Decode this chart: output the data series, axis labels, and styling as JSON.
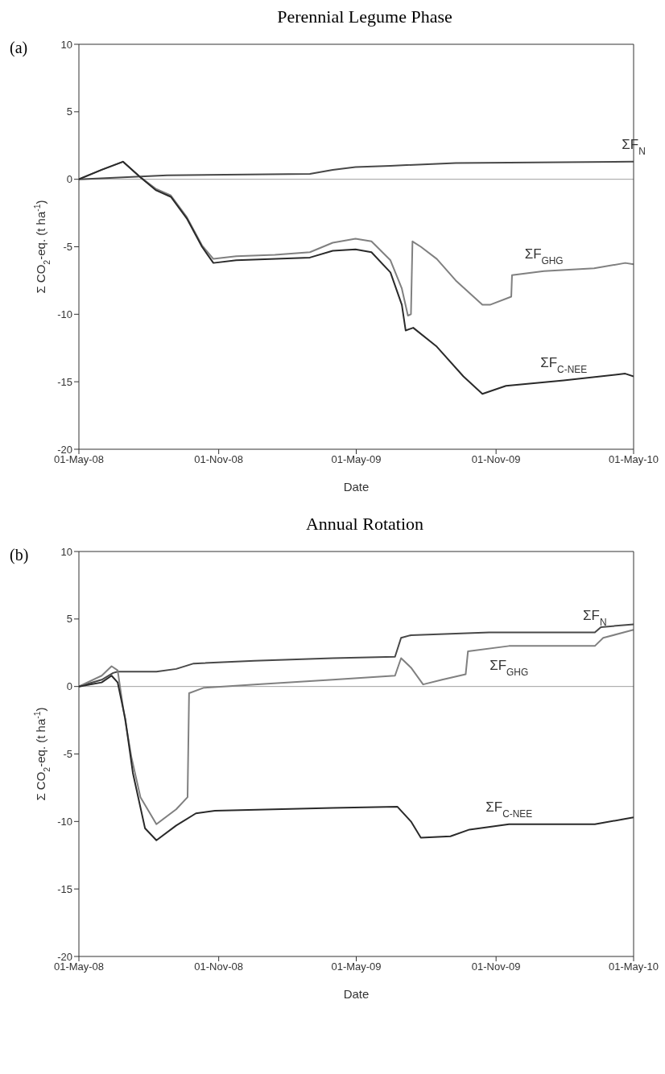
{
  "chart_data": [
    {
      "type": "line",
      "title": "Perennial Legume Phase",
      "annotations": [
        "(a)"
      ],
      "xlabel": "Date",
      "ylabel": "Σ CO$_{2}$-eq. (t ha$^{-1}$)",
      "xlim": [
        "2008-05-01",
        "2010-05-01"
      ],
      "xticks": [
        {
          "value": "2008-05-01",
          "label": "01-May-08"
        },
        {
          "value": "2008-11-01",
          "label": "01-Nov-08"
        },
        {
          "value": "2009-05-01",
          "label": "01-May-09"
        },
        {
          "value": "2009-11-01",
          "label": "01-Nov-09"
        },
        {
          "value": "2010-05-01",
          "label": "01-May-10"
        }
      ],
      "ylim": [
        -20,
        10
      ],
      "yticks": [
        -20,
        -15,
        -10,
        -5,
        0,
        5,
        10
      ],
      "ref_lines": [
        {
          "axis": "y",
          "value": 0,
          "color": "#a0a0a0"
        }
      ],
      "series": [
        {
          "name": "ΣF$_{N}$",
          "color": "#484848",
          "x": [
            "2008-05-01",
            "2008-08-25",
            "2009-03-01",
            "2009-03-31",
            "2009-04-30",
            "2009-06-15",
            "2009-09-09",
            "2010-05-01"
          ],
          "values": [
            0,
            0.3,
            0.4,
            0.7,
            0.9,
            1.0,
            1.2,
            1.3
          ]
        },
        {
          "name": "ΣF$_{GHG}$",
          "color": "#808080",
          "x": [
            "2008-05-01",
            "2008-05-31",
            "2008-06-28",
            "2008-07-21",
            "2008-08-10",
            "2008-08-30",
            "2008-09-20",
            "2008-10-10",
            "2008-10-25",
            "2008-11-24",
            "2009-01-14",
            "2009-03-01",
            "2009-03-31",
            "2009-04-30",
            "2009-05-21",
            "2009-06-15",
            "2009-06-30",
            "2009-07-08",
            "2009-07-12",
            "2009-07-14",
            "2009-07-25",
            "2009-08-15",
            "2009-09-09",
            "2009-10-14",
            "2009-10-24",
            "2009-11-21",
            "2009-11-22",
            "2010-01-03",
            "2010-03-10",
            "2010-04-20",
            "2010-05-01"
          ],
          "values": [
            0,
            0.7,
            1.3,
            0.15,
            -0.7,
            -1.2,
            -2.8,
            -4.9,
            -5.9,
            -5.7,
            -5.6,
            -5.4,
            -4.7,
            -4.4,
            -4.6,
            -6.0,
            -8.1,
            -10.1,
            -10.0,
            -4.6,
            -5.0,
            -5.9,
            -7.5,
            -9.3,
            -9.3,
            -8.7,
            -7.1,
            -6.8,
            -6.6,
            -6.2,
            -6.3
          ]
        },
        {
          "name": "ΣF$_{C-NEE}$",
          "color": "#2a2a2a",
          "x": [
            "2008-05-01",
            "2008-05-31",
            "2008-06-28",
            "2008-07-21",
            "2008-08-10",
            "2008-08-30",
            "2008-09-20",
            "2008-10-10",
            "2008-10-25",
            "2008-11-24",
            "2009-03-01",
            "2009-03-31",
            "2009-04-30",
            "2009-05-21",
            "2009-06-15",
            "2009-06-30",
            "2009-07-05",
            "2009-07-15",
            "2009-08-15",
            "2009-09-19",
            "2009-10-14",
            "2009-11-14",
            "2010-01-29",
            "2010-04-20",
            "2010-05-01"
          ],
          "values": [
            0,
            0.7,
            1.3,
            0.15,
            -0.8,
            -1.3,
            -2.9,
            -5.0,
            -6.2,
            -6.0,
            -5.8,
            -5.3,
            -5.2,
            -5.4,
            -6.9,
            -9.3,
            -11.2,
            -11.0,
            -12.4,
            -14.6,
            -15.9,
            -15.3,
            -14.9,
            -14.4,
            -14.6
          ]
        }
      ]
    },
    {
      "type": "line",
      "title": "Annual Rotation",
      "annotations": [
        "(b)"
      ],
      "xlabel": "Date",
      "ylabel": "Σ CO$_{2}$-eq. (t ha$^{-1}$)",
      "xlim": [
        "2008-05-01",
        "2010-05-01"
      ],
      "xticks": [
        {
          "value": "2008-05-01",
          "label": "01-May-08"
        },
        {
          "value": "2008-11-01",
          "label": "01-Nov-08"
        },
        {
          "value": "2009-05-01",
          "label": "01-May-09"
        },
        {
          "value": "2009-11-01",
          "label": "01-Nov-09"
        },
        {
          "value": "2010-05-01",
          "label": "01-May-10"
        }
      ],
      "ylim": [
        -20,
        10
      ],
      "yticks": [
        -20,
        -15,
        -10,
        -5,
        0,
        5,
        10
      ],
      "ref_lines": [
        {
          "axis": "y",
          "value": 0,
          "color": "#a0a0a0"
        }
      ],
      "series": [
        {
          "name": "ΣF$_{N}$",
          "color": "#484848",
          "x": [
            "2008-05-01",
            "2008-05-31",
            "2008-06-15",
            "2008-06-21",
            "2008-08-11",
            "2008-09-06",
            "2008-09-29",
            "2008-12-18",
            "2009-03-31",
            "2009-06-21",
            "2009-06-29",
            "2009-07-12",
            "2009-10-23",
            "2010-03-11",
            "2010-03-19",
            "2010-05-01"
          ],
          "values": [
            0,
            0.5,
            1.0,
            1.1,
            1.1,
            1.3,
            1.7,
            1.9,
            2.1,
            2.2,
            3.6,
            3.8,
            4.0,
            4.0,
            4.4,
            4.6
          ]
        },
        {
          "name": "ΣF$_{GHG}$",
          "color": "#808080",
          "x": [
            "2008-05-01",
            "2008-05-31",
            "2008-06-13",
            "2008-06-21",
            "2008-06-28",
            "2008-07-09",
            "2008-07-21",
            "2008-08-11",
            "2008-09-06",
            "2008-09-21",
            "2008-09-23",
            "2008-10-12",
            "2008-12-18",
            "2009-03-31",
            "2009-06-21",
            "2009-06-29",
            "2009-07-12",
            "2009-07-28",
            "2009-08-22",
            "2009-09-22",
            "2009-09-25",
            "2009-11-18",
            "2010-03-11",
            "2010-03-22",
            "2010-05-01"
          ],
          "values": [
            0,
            0.8,
            1.5,
            1.2,
            -1.5,
            -5.2,
            -8.2,
            -10.2,
            -9.1,
            -8.2,
            -0.5,
            -0.1,
            0.15,
            0.5,
            0.8,
            2.1,
            1.4,
            0.15,
            0.5,
            0.9,
            2.6,
            3.0,
            3.0,
            3.6,
            4.2
          ]
        },
        {
          "name": "ΣF$_{C-NEE}$",
          "color": "#2a2a2a",
          "x": [
            "2008-05-01",
            "2008-05-31",
            "2008-06-13",
            "2008-06-21",
            "2008-07-01",
            "2008-07-11",
            "2008-07-27",
            "2008-08-11",
            "2008-09-06",
            "2008-10-02",
            "2008-10-27",
            "2009-03-31",
            "2009-06-24",
            "2009-07-12",
            "2009-07-25",
            "2009-09-02",
            "2009-09-27",
            "2009-11-18",
            "2010-03-11",
            "2010-05-01"
          ],
          "values": [
            0,
            0.3,
            0.8,
            0.3,
            -2.4,
            -6.4,
            -10.5,
            -11.4,
            -10.3,
            -9.4,
            -9.2,
            -9.0,
            -8.9,
            -10.0,
            -11.2,
            -11.1,
            -10.6,
            -10.2,
            -10.2,
            -9.7
          ]
        }
      ]
    }
  ]
}
